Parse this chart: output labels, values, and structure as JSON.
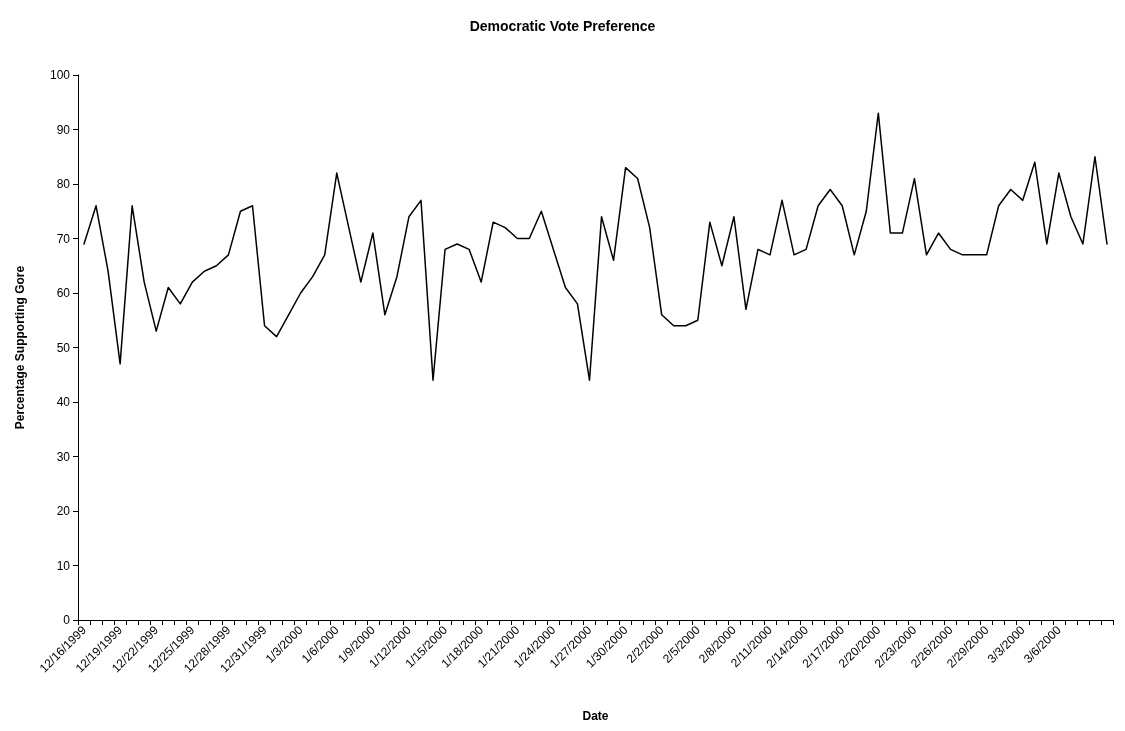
{
  "chart_data": {
    "type": "line",
    "title": "Democratic Vote Preference",
    "xlabel": "Date",
    "ylabel": "Percentage Supporting Gore",
    "categories": [
      "12/16/1999",
      null,
      null,
      "12/19/1999",
      null,
      null,
      "12/22/1999",
      null,
      null,
      "12/25/1999",
      null,
      null,
      "12/28/1999",
      null,
      null,
      "12/31/1999",
      null,
      null,
      "1/3/2000",
      null,
      null,
      "1/6/2000",
      null,
      null,
      "1/9/2000",
      null,
      null,
      "1/12/2000",
      null,
      null,
      "1/15/2000",
      null,
      null,
      "1/18/2000",
      null,
      null,
      "1/21/2000",
      null,
      null,
      "1/24/2000",
      null,
      null,
      "1/27/2000",
      null,
      null,
      "1/30/2000",
      null,
      null,
      "2/2/2000",
      null,
      null,
      "2/5/2000",
      null,
      null,
      "2/8/2000",
      null,
      null,
      "2/11/2000",
      null,
      null,
      "2/14/2000",
      null,
      null,
      "2/17/2000",
      null,
      null,
      "2/20/2000",
      null,
      null,
      "2/23/2000",
      null,
      null,
      "2/26/2000",
      null,
      null,
      "2/29/2000",
      null,
      null,
      "3/3/2000",
      null,
      null,
      "3/6/2000",
      null,
      null,
      null,
      null
    ],
    "series": [
      {
        "color": "#000000",
        "values": [
          69,
          76,
          64,
          47,
          76,
          62,
          53,
          61,
          58,
          62,
          64,
          65,
          67,
          75,
          76,
          54,
          52,
          56,
          60,
          63,
          67,
          82,
          72,
          62,
          71,
          56,
          63,
          74,
          77,
          44,
          68,
          69,
          68,
          62,
          73,
          72,
          70,
          70,
          75,
          68,
          61,
          58,
          44,
          74,
          66,
          83,
          81,
          72,
          56,
          54,
          54,
          55,
          73,
          65,
          74,
          57,
          68,
          67,
          77,
          67,
          68,
          76,
          79,
          76,
          67,
          75,
          93,
          71,
          71,
          81,
          67,
          71,
          68,
          67,
          67,
          67,
          76,
          79,
          77,
          84,
          69,
          82,
          74,
          69,
          85,
          69
        ]
      }
    ],
    "ylim": [
      0,
      100
    ],
    "yticks": [
      0,
      10,
      20,
      30,
      40,
      50,
      60,
      70,
      80,
      90,
      100
    ],
    "grid": false,
    "marker": "none",
    "line_style": "solid"
  }
}
